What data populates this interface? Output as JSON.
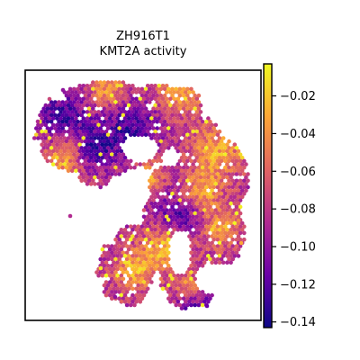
{
  "chart_data": {
    "type": "scatter",
    "subtype": "spatial-hexbin",
    "title_lines": [
      "ZH916T1",
      "KMT2A activity"
    ],
    "xlabel": "",
    "ylabel": "",
    "axis_ticks_visible": false,
    "grid": false,
    "colormap": "plasma",
    "colormap_stops": [
      "#0d0887",
      "#6a00a8",
      "#b12a90",
      "#e16462",
      "#fca636",
      "#f0f921"
    ],
    "colorbar": {
      "range": [
        -0.143,
        -0.003
      ],
      "ticks": [
        -0.02,
        -0.04,
        -0.06,
        -0.08,
        -0.1,
        -0.12,
        -0.14
      ],
      "tick_labels": [
        "−0.02",
        "−0.04",
        "−0.06",
        "−0.08",
        "−0.10",
        "−0.12",
        "−0.14"
      ],
      "placement": "right"
    },
    "tissue_value_summary": {
      "typical_min": -0.14,
      "typical_max": -0.005,
      "dominant_range": [
        -0.11,
        -0.07
      ]
    }
  }
}
